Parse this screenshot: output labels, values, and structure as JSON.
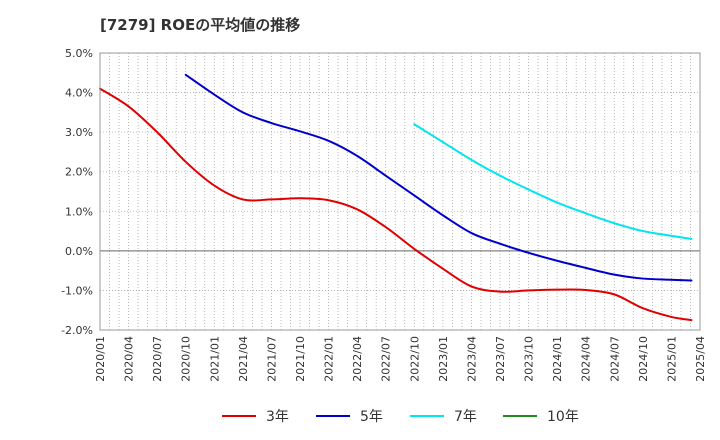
{
  "chart_data": {
    "type": "line",
    "title": "[7279]  ROEの平均値の推移",
    "xlabel": "",
    "ylabel": "",
    "ylim": [
      -2.0,
      5.0
    ],
    "yticks": [
      "5.0%",
      "4.0%",
      "3.0%",
      "2.0%",
      "1.0%",
      "0.0%",
      "-1.0%",
      "-2.0%"
    ],
    "x_ticks": [
      "2020/01",
      "2020/04",
      "2020/07",
      "2020/10",
      "2021/01",
      "2021/04",
      "2021/07",
      "2021/10",
      "2022/01",
      "2022/04",
      "2022/07",
      "2022/10",
      "2023/01",
      "2023/04",
      "2023/07",
      "2023/10",
      "2024/01",
      "2024/04",
      "2024/07",
      "2024/10",
      "2025/01",
      "2025/04"
    ],
    "grid": true,
    "legend_position": "bottom",
    "series": [
      {
        "name": "3年",
        "color": "#e00000",
        "points": [
          [
            0,
            4.1
          ],
          [
            1,
            3.65
          ],
          [
            2,
            3.0
          ],
          [
            3,
            2.25
          ],
          [
            4,
            1.65
          ],
          [
            5,
            1.3
          ],
          [
            6,
            1.3
          ],
          [
            7,
            1.33
          ],
          [
            8,
            1.28
          ],
          [
            9,
            1.05
          ],
          [
            10,
            0.6
          ],
          [
            11,
            0.05
          ],
          [
            12,
            -0.45
          ],
          [
            13,
            -0.9
          ],
          [
            14,
            -1.03
          ],
          [
            15,
            -1.0
          ],
          [
            16,
            -0.98
          ],
          [
            17,
            -0.99
          ],
          [
            18,
            -1.1
          ],
          [
            19,
            -1.45
          ],
          [
            20,
            -1.67
          ],
          [
            20.7,
            -1.75
          ]
        ]
      },
      {
        "name": "5年",
        "color": "#0000cc",
        "points": [
          [
            3,
            4.45
          ],
          [
            4,
            3.95
          ],
          [
            5,
            3.5
          ],
          [
            6,
            3.23
          ],
          [
            7,
            3.02
          ],
          [
            8,
            2.78
          ],
          [
            9,
            2.4
          ],
          [
            10,
            1.9
          ],
          [
            11,
            1.4
          ],
          [
            12,
            0.9
          ],
          [
            13,
            0.45
          ],
          [
            14,
            0.18
          ],
          [
            15,
            -0.05
          ],
          [
            16,
            -0.25
          ],
          [
            17,
            -0.43
          ],
          [
            18,
            -0.6
          ],
          [
            19,
            -0.7
          ],
          [
            20,
            -0.73
          ],
          [
            20.7,
            -0.75
          ]
        ]
      },
      {
        "name": "7年",
        "color": "#00e5ee",
        "points": [
          [
            11,
            3.2
          ],
          [
            12,
            2.75
          ],
          [
            13,
            2.3
          ],
          [
            14,
            1.9
          ],
          [
            15,
            1.55
          ],
          [
            16,
            1.22
          ],
          [
            17,
            0.95
          ],
          [
            18,
            0.7
          ],
          [
            19,
            0.5
          ],
          [
            20,
            0.38
          ],
          [
            20.7,
            0.3
          ]
        ]
      },
      {
        "name": "10年",
        "color": "#228b22",
        "points": []
      }
    ]
  }
}
